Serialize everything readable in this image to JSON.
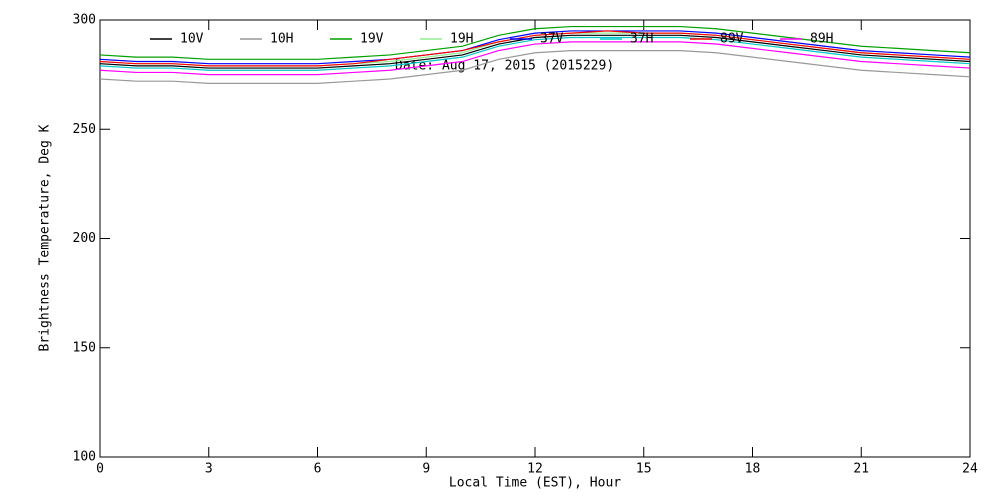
{
  "chart_data": {
    "type": "line",
    "xlabel": "Local Time (EST), Hour",
    "ylabel": "Brightness Temperature, Deg K",
    "annotation": "Date: Aug 17, 2015 (2015229)",
    "x": [
      0,
      1,
      2,
      3,
      4,
      5,
      6,
      7,
      8,
      9,
      10,
      11,
      12,
      13,
      14,
      15,
      16,
      17,
      18,
      19,
      20,
      21,
      22,
      23,
      24
    ],
    "xlim": [
      0,
      24
    ],
    "xticks": [
      0,
      3,
      6,
      9,
      12,
      15,
      18,
      21,
      24
    ],
    "ylim": [
      100,
      300
    ],
    "yticks": [
      100,
      150,
      200,
      250,
      300
    ],
    "legend": "top",
    "series": [
      {
        "name": "10V",
        "color": "#000000",
        "values": [
          280,
          279,
          279,
          278,
          278,
          278,
          278,
          279,
          280,
          282,
          284,
          289,
          292,
          293,
          293,
          293,
          293,
          292,
          290,
          288,
          286,
          284,
          283,
          282,
          281
        ]
      },
      {
        "name": "10H",
        "color": "#999999",
        "values": [
          273,
          272,
          272,
          271,
          271,
          271,
          271,
          272,
          273,
          275,
          277,
          282,
          285,
          286,
          286,
          286,
          286,
          285,
          283,
          281,
          279,
          277,
          276,
          275,
          274
        ]
      },
      {
        "name": "19V",
        "color": "#00a000",
        "values": [
          284,
          283,
          283,
          282,
          282,
          282,
          282,
          283,
          284,
          286,
          288,
          293,
          296,
          297,
          297,
          297,
          297,
          296,
          294,
          292,
          290,
          288,
          287,
          286,
          285
        ]
      },
      {
        "name": "19H",
        "color": "#90ee90",
        "values": [
          281,
          280,
          280,
          279,
          279,
          279,
          279,
          280,
          281,
          283,
          285,
          290,
          293,
          294,
          294,
          294,
          294,
          293,
          291,
          289,
          287,
          285,
          284,
          283,
          282
        ]
      },
      {
        "name": "37V",
        "color": "#0000ff",
        "values": [
          282,
          281,
          281,
          280,
          280,
          280,
          280,
          281,
          282,
          284,
          286,
          291,
          294,
          295,
          295,
          295,
          295,
          294,
          292,
          290,
          288,
          286,
          285,
          284,
          283
        ]
      },
      {
        "name": "37H",
        "color": "#00c8c8",
        "values": [
          279,
          278,
          278,
          277,
          277,
          277,
          277,
          278,
          279,
          281,
          283,
          288,
          291,
          292,
          292,
          292,
          292,
          291,
          289,
          287,
          285,
          283,
          282,
          281,
          280
        ]
      },
      {
        "name": "89V",
        "color": "#ff0000",
        "values": [
          281,
          280,
          280,
          279,
          279,
          279,
          279,
          280,
          282,
          284,
          286,
          290,
          293,
          294,
          295,
          294,
          294,
          293,
          291,
          289,
          287,
          285,
          284,
          283,
          282
        ]
      },
      {
        "name": "89H",
        "color": "#ff00ff",
        "values": [
          277,
          276,
          276,
          275,
          275,
          275,
          275,
          276,
          277,
          279,
          281,
          286,
          289,
          290,
          290,
          290,
          290,
          289,
          287,
          285,
          283,
          281,
          280,
          279,
          278
        ]
      }
    ]
  }
}
